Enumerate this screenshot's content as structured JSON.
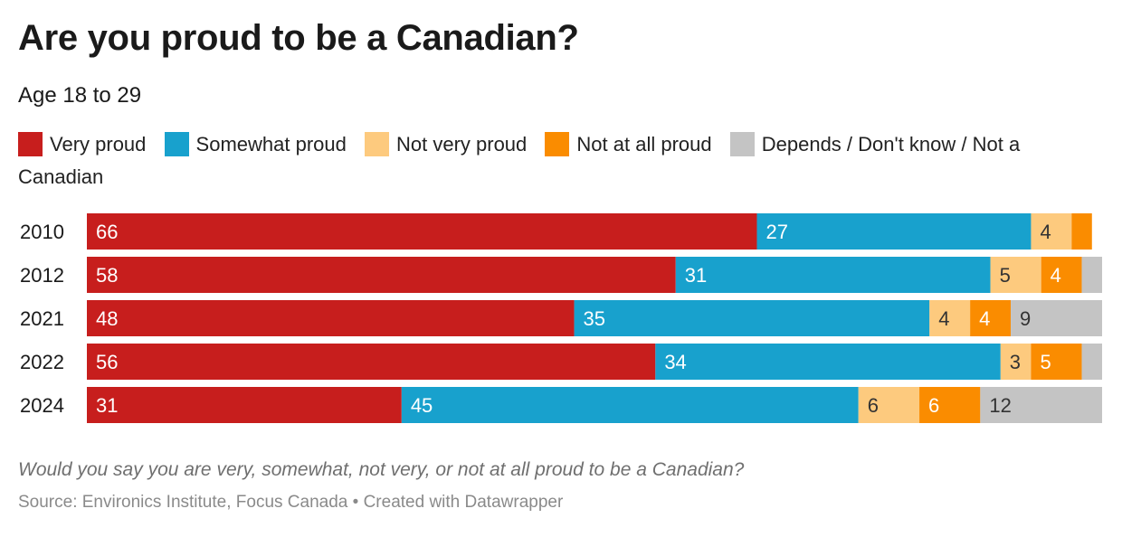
{
  "title": "Are you proud to be a Canadian?",
  "subtitle": "Age 18 to 29",
  "description": "Would you say you are very, somewhat, not very, or not at all proud to be a Canadian?",
  "source_label": "Source: Environics Institute, Focus Canada",
  "separator": "•",
  "credit": "Created with Datawrapper",
  "chart_data": {
    "type": "bar",
    "orientation": "horizontal",
    "stacked": true,
    "categories": [
      "2010",
      "2012",
      "2021",
      "2022",
      "2024"
    ],
    "xlim": [
      0,
      100
    ],
    "grid": false,
    "legend_position": "top",
    "series": [
      {
        "name": "Very proud",
        "color": "#c71e1d",
        "label_color": "#ffffff",
        "values": [
          66,
          58,
          48,
          56,
          31
        ]
      },
      {
        "name": "Somewhat proud",
        "color": "#18a1cd",
        "label_color": "#ffffff",
        "values": [
          27,
          31,
          35,
          34,
          45
        ]
      },
      {
        "name": "Not very proud",
        "color": "#fdca7e",
        "label_color": "#333333",
        "values": [
          4,
          5,
          4,
          3,
          6
        ]
      },
      {
        "name": "Not at all proud",
        "color": "#fa8c00",
        "label_color": "#ffffff",
        "values": [
          2,
          4,
          4,
          5,
          6
        ]
      },
      {
        "name": "Depends / Don't know / Not a Canadian",
        "color": "#c4c4c4",
        "label_color": "#333333",
        "values": [
          0,
          2,
          9,
          2,
          12
        ]
      }
    ],
    "labeled": [
      [
        true,
        true,
        true,
        false,
        false
      ],
      [
        true,
        true,
        true,
        true,
        false
      ],
      [
        true,
        true,
        true,
        true,
        true
      ],
      [
        true,
        true,
        true,
        true,
        false
      ],
      [
        true,
        true,
        true,
        true,
        true
      ]
    ]
  }
}
